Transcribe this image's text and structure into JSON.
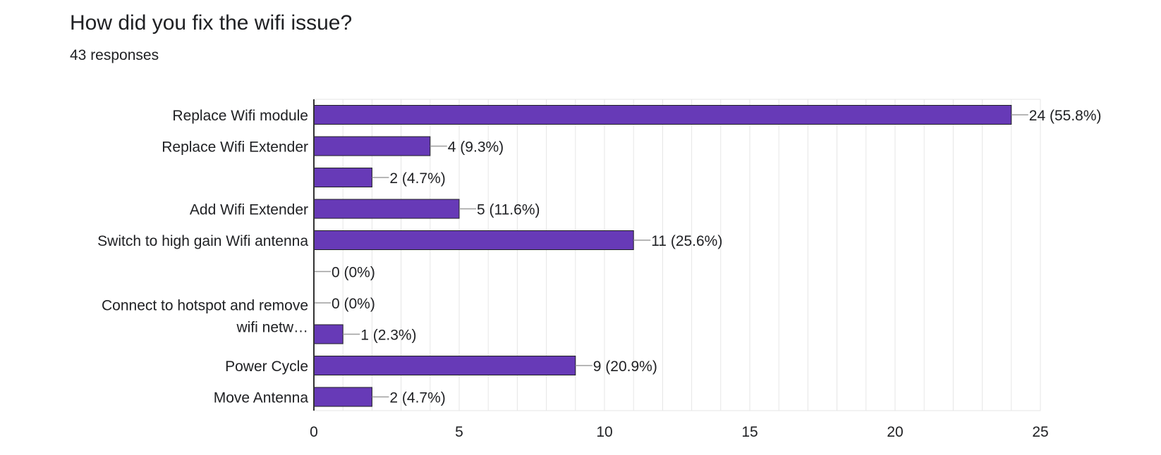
{
  "header": {
    "title": "How did you fix the wifi issue?",
    "subtitle": "43 responses"
  },
  "colors": {
    "bar": "#673ab7",
    "grid": "#e6e6e6",
    "axis": "#333333",
    "leader": "#9e9e9e"
  },
  "chart_data": {
    "type": "bar",
    "orientation": "horizontal",
    "categories": [
      "Replace Wifi module",
      "Replace Wifi Extender",
      "",
      "Add Wifi Extender",
      "Switch to high gain Wifi antenna",
      "",
      "",
      "",
      "Power Cycle",
      "Move Antenna"
    ],
    "category_labels_shown": [
      "Replace Wifi module",
      "Replace Wifi Extender",
      "Add Wifi Extender",
      "Switch to high gain Wifi antenna",
      "Connect to hotspot and remove wifi netw…",
      "Power Cycle",
      "Move Antenna"
    ],
    "values": [
      24,
      4,
      2,
      5,
      11,
      0,
      0,
      1,
      9,
      2
    ],
    "data_labels": [
      "24 (55.8%)",
      "4 (9.3%)",
      "2 (4.7%)",
      "5 (11.6%)",
      "11 (25.6%)",
      "0 (0%)",
      "0 (0%)",
      "1 (2.3%)",
      "9 (20.9%)",
      "2 (4.7%)"
    ],
    "xlim": [
      0,
      25
    ],
    "xticks": [
      0,
      5,
      10,
      15,
      20,
      25
    ],
    "grid": true,
    "legend": "none"
  }
}
